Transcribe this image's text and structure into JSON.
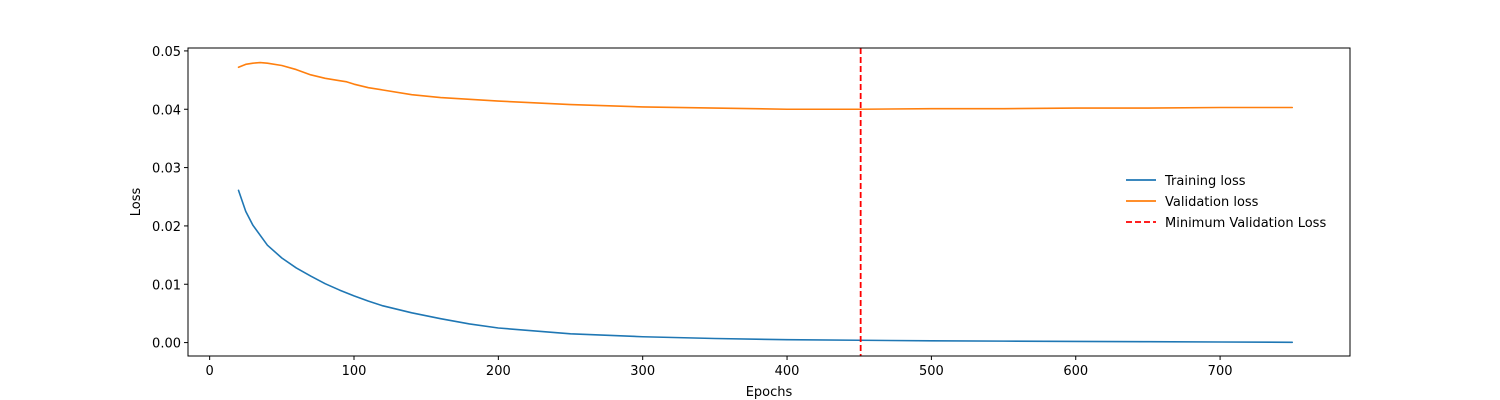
{
  "chart_data": {
    "type": "line",
    "title": "",
    "xlabel": "Epochs",
    "ylabel": "Loss",
    "xlim": [
      -15,
      790
    ],
    "ylim": [
      -0.0023,
      0.0505
    ],
    "xticks": [
      0,
      100,
      200,
      300,
      400,
      500,
      600,
      700
    ],
    "yticks": [
      0.0,
      0.01,
      0.02,
      0.03,
      0.04,
      0.05
    ],
    "xtick_labels": [
      "0",
      "100",
      "200",
      "300",
      "400",
      "500",
      "600",
      "700"
    ],
    "ytick_labels": [
      "0.00",
      "0.01",
      "0.02",
      "0.03",
      "0.04",
      "0.05"
    ],
    "grid": false,
    "legend_position": "center-right",
    "series": [
      {
        "name": "Training loss",
        "color": "#1f77b4",
        "style": "solid",
        "x": [
          20,
          25,
          30,
          40,
          50,
          60,
          70,
          80,
          90,
          100,
          110,
          120,
          140,
          160,
          180,
          200,
          250,
          300,
          350,
          400,
          450,
          500,
          550,
          600,
          650,
          700,
          750
        ],
        "y": [
          0.0261,
          0.0225,
          0.0201,
          0.0167,
          0.0145,
          0.0128,
          0.0114,
          0.0101,
          0.009,
          0.008,
          0.0071,
          0.0063,
          0.0051,
          0.0041,
          0.0032,
          0.0025,
          0.0015,
          0.001,
          0.0007,
          0.0005,
          0.0004,
          0.0003,
          0.00025,
          0.0002,
          0.00015,
          0.0001,
          5e-05
        ]
      },
      {
        "name": "Validation loss",
        "color": "#ff7f0e",
        "style": "solid",
        "x": [
          20,
          25,
          30,
          35,
          40,
          50,
          60,
          70,
          80,
          90,
          95,
          100,
          110,
          120,
          140,
          160,
          180,
          200,
          250,
          300,
          350,
          400,
          450,
          500,
          550,
          600,
          650,
          700,
          750
        ],
        "y": [
          0.0472,
          0.0477,
          0.0479,
          0.048,
          0.0479,
          0.0475,
          0.0468,
          0.0459,
          0.0453,
          0.0449,
          0.0447,
          0.0443,
          0.0437,
          0.0433,
          0.0425,
          0.042,
          0.0417,
          0.0414,
          0.0408,
          0.0404,
          0.0402,
          0.04,
          0.04,
          0.0401,
          0.0401,
          0.0402,
          0.0402,
          0.0403,
          0.0403
        ]
      }
    ],
    "vline": {
      "name": "Minimum Validation Loss",
      "x": 451,
      "color": "#ff0000",
      "style": "dashed"
    }
  }
}
